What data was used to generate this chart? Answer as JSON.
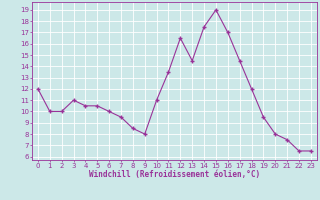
{
  "x": [
    0,
    1,
    2,
    3,
    4,
    5,
    6,
    7,
    8,
    9,
    10,
    11,
    12,
    13,
    14,
    15,
    16,
    17,
    18,
    19,
    20,
    21,
    22,
    23
  ],
  "y": [
    12,
    10,
    10,
    11,
    10.5,
    10.5,
    10,
    9.5,
    8.5,
    8,
    11,
    13.5,
    16.5,
    14.5,
    17.5,
    19,
    17,
    14.5,
    12,
    9.5,
    8,
    7.5,
    6.5,
    6.5
  ],
  "line_color": "#993399",
  "marker_color": "#993399",
  "bg_color": "#cce8e8",
  "grid_color": "#ffffff",
  "xlabel": "Windchill (Refroidissement éolien,°C)",
  "xlabel_color": "#993399",
  "yticks": [
    6,
    7,
    8,
    9,
    10,
    11,
    12,
    13,
    14,
    15,
    16,
    17,
    18,
    19
  ],
  "xticks": [
    0,
    1,
    2,
    3,
    4,
    5,
    6,
    7,
    8,
    9,
    10,
    11,
    12,
    13,
    14,
    15,
    16,
    17,
    18,
    19,
    20,
    21,
    22,
    23
  ],
  "ylim": [
    5.7,
    19.7
  ],
  "xlim": [
    -0.5,
    23.5
  ],
  "tick_fontsize": 5.0,
  "xlabel_fontsize": 5.5
}
